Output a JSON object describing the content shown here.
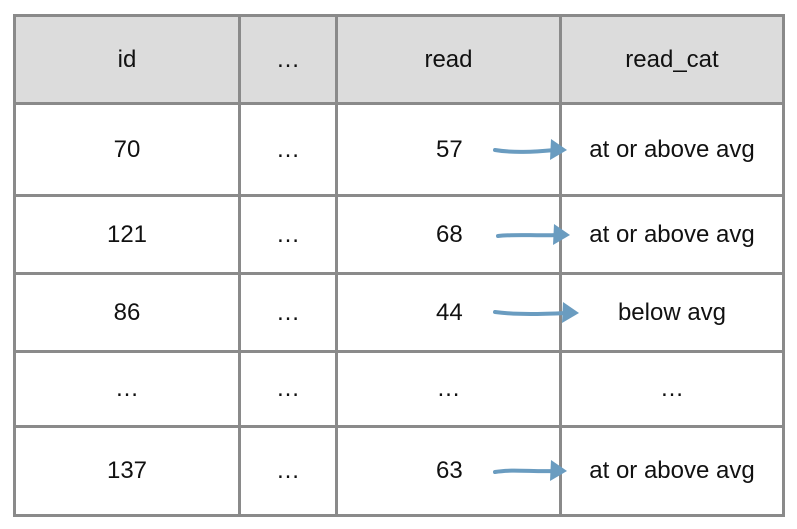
{
  "colors": {
    "border": "#8a8a8a",
    "header_bg": "#dcdcdc",
    "arrow": "#6a9cc0",
    "text": "#111111"
  },
  "table": {
    "headers": [
      "id",
      "…",
      "read",
      "read_cat"
    ],
    "rows": [
      {
        "id": "70",
        "dots": "…",
        "read": "57",
        "read_cat": "at or above avg",
        "arrow": true
      },
      {
        "id": "121",
        "dots": "…",
        "read": "68",
        "read_cat": "at or above avg",
        "arrow": true
      },
      {
        "id": "86",
        "dots": "…",
        "read": "44",
        "read_cat": "below avg",
        "arrow": true
      },
      {
        "id": "…",
        "dots": "…",
        "read": "…",
        "read_cat": "…",
        "arrow": false
      },
      {
        "id": "137",
        "dots": "…",
        "read": "63",
        "read_cat": "at or above avg",
        "arrow": true
      }
    ]
  }
}
